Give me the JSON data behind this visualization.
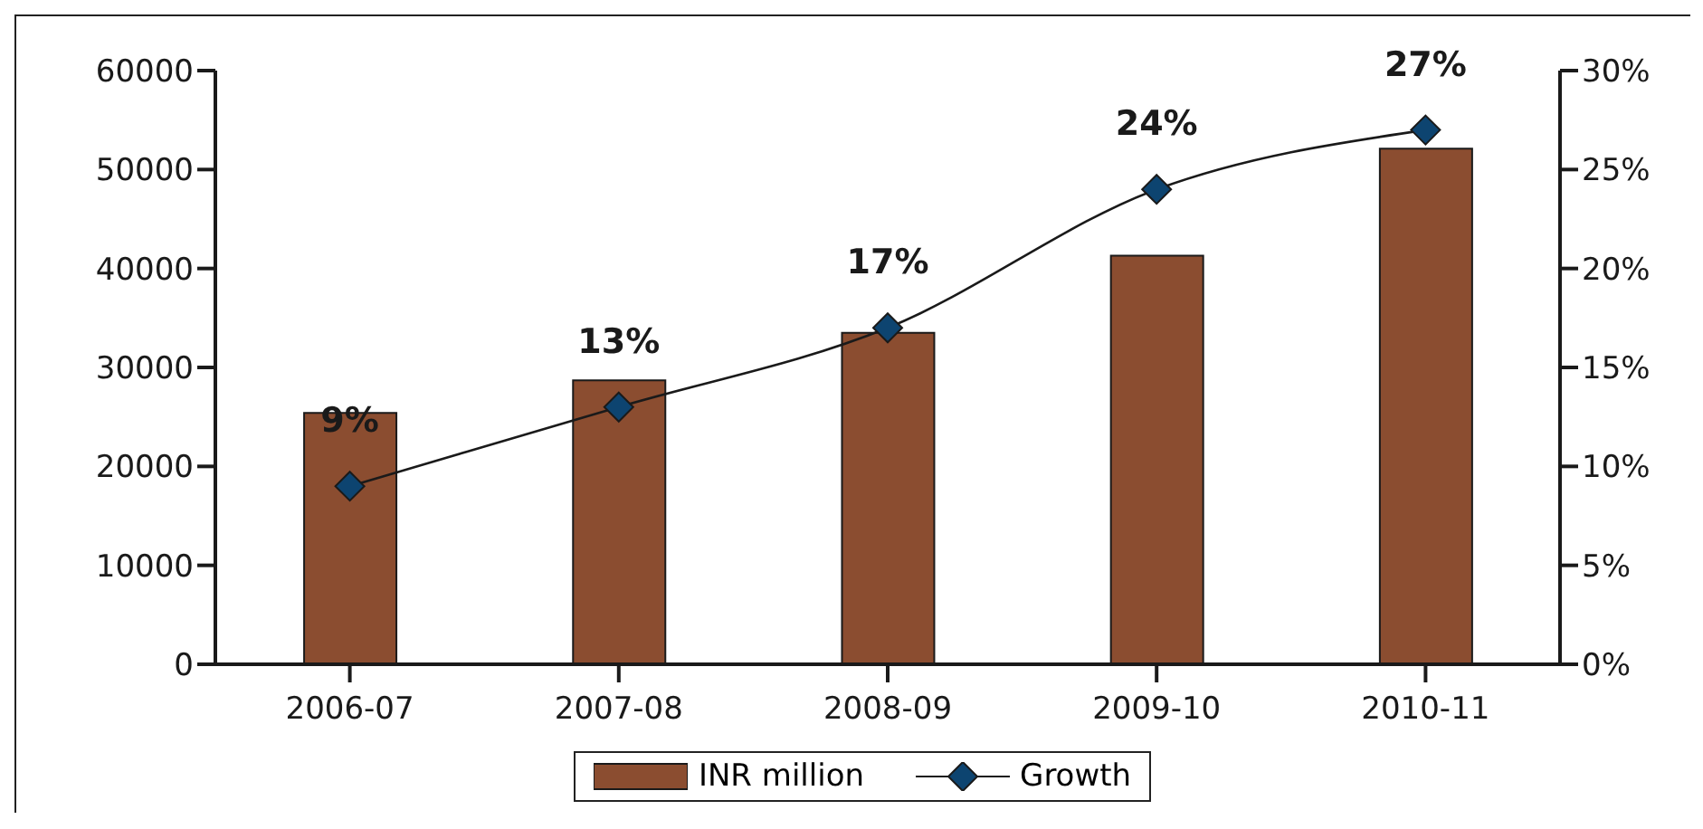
{
  "chart_data": {
    "type": "bar",
    "categories": [
      "2006-07",
      "2007-08",
      "2008-09",
      "2009-10",
      "2010-11"
    ],
    "series": [
      {
        "name": "INR million",
        "color": "#8b4d30",
        "values": [
          25400,
          28700,
          33500,
          41300,
          52100
        ]
      },
      {
        "name": "Growth",
        "type": "line",
        "axis": "y2",
        "color": "#0d4470",
        "values": [
          9,
          13,
          17,
          24,
          27
        ],
        "value_labels": [
          "9%",
          "13%",
          "17%",
          "24%",
          "27%"
        ],
        "marker": "diamond",
        "line_style": "solid"
      }
    ],
    "ylim": [
      0,
      60000
    ],
    "yticks": [
      0,
      10000,
      20000,
      30000,
      40000,
      50000,
      60000
    ],
    "y2lim": [
      0,
      30
    ],
    "y2ticks": [
      {
        "value": 0,
        "label": "0%"
      },
      {
        "value": 5,
        "label": "5%"
      },
      {
        "value": 10,
        "label": "10%"
      },
      {
        "value": 15,
        "label": "15%"
      },
      {
        "value": 20,
        "label": "20%"
      },
      {
        "value": 25,
        "label": "25%"
      },
      {
        "value": 30,
        "label": "30%"
      }
    ],
    "grid": false,
    "legend": "bottom"
  }
}
